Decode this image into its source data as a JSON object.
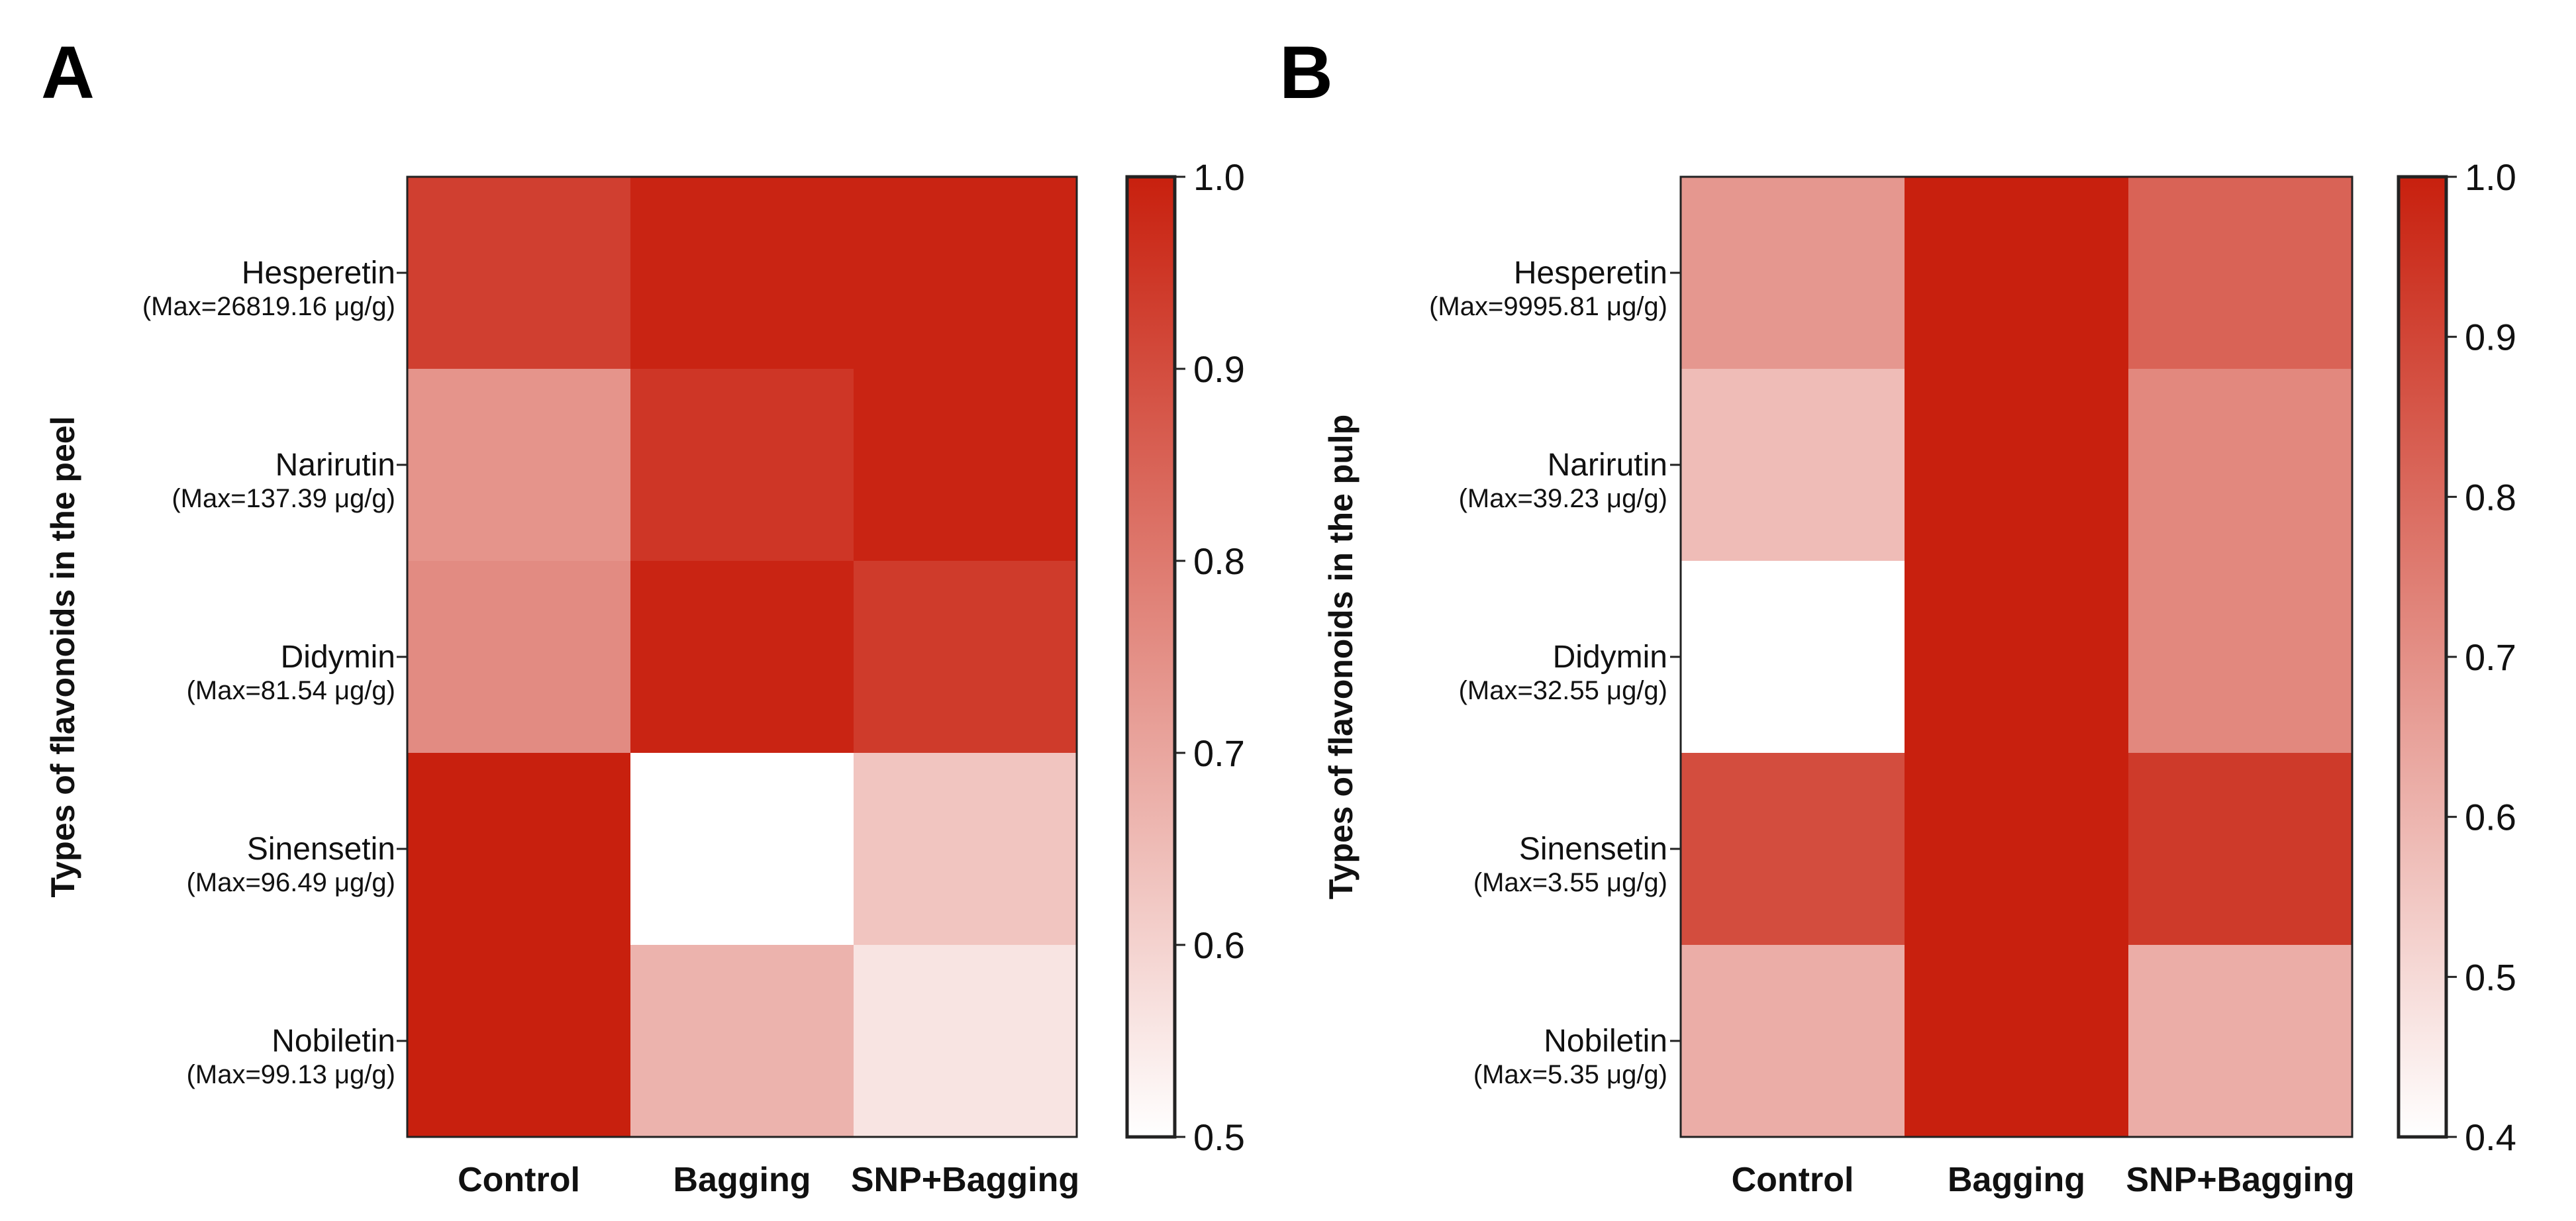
{
  "panels": [
    {
      "letter": "A",
      "ylabel": "Types of flavonoids in the peel",
      "colorbar_ticks": [
        "1.0",
        "0.9",
        "0.8",
        "0.7",
        "0.6",
        "0.5"
      ],
      "row_max_labels": [
        "(Max=26819.16 μg/g)",
        "(Max=137.39 μg/g)",
        "(Max=81.54 μg/g)",
        "(Max=96.49 μg/g)",
        "(Max=99.13 μg/g)"
      ]
    },
    {
      "letter": "B",
      "ylabel": "Types of flavonoids in the pulp",
      "colorbar_ticks": [
        "1.0",
        "0.9",
        "0.8",
        "0.7",
        "0.6",
        "0.5",
        "0.4"
      ],
      "row_max_labels": [
        "(Max=9995.81 μg/g)",
        "(Max=39.23 μg/g)",
        "(Max=32.55 μg/g)",
        "(Max=3.55 μg/g)",
        "(Max=5.35 μg/g)"
      ]
    }
  ],
  "chart_data": [
    {
      "type": "heatmap",
      "x": [
        "Control",
        "Bagging",
        "SNP+Bagging"
      ],
      "y": [
        "Hesperetin",
        "Narirutin",
        "Didymin",
        "Sinensetin",
        "Nobiletin"
      ],
      "values": [
        [
          0.93,
          0.99,
          0.99
        ],
        [
          0.74,
          0.95,
          0.99
        ],
        [
          0.76,
          0.99,
          0.94
        ],
        [
          1.0,
          0.5,
          0.63
        ],
        [
          1.0,
          0.67,
          0.56
        ]
      ],
      "colorbar": {
        "min": 0.5,
        "max": 1.0,
        "low_color": "#ffffff",
        "high_color": "#c8200e"
      },
      "ylabel": "Types of flavonoids in the peel"
    },
    {
      "type": "heatmap",
      "x": [
        "Control",
        "Bagging",
        "SNP+Bagging"
      ],
      "y": [
        "Hesperetin",
        "Narirutin",
        "Didymin",
        "Sinensetin",
        "Nobiletin"
      ],
      "values": [
        [
          0.68,
          1.0,
          0.82
        ],
        [
          0.58,
          1.0,
          0.72
        ],
        [
          0.4,
          1.0,
          0.72
        ],
        [
          0.88,
          1.0,
          0.93
        ],
        [
          0.62,
          1.0,
          0.62
        ]
      ],
      "colorbar": {
        "min": 0.4,
        "max": 1.0,
        "low_color": "#ffffff",
        "high_color": "#c8200e"
      },
      "ylabel": "Types of flavonoids in the pulp"
    }
  ]
}
